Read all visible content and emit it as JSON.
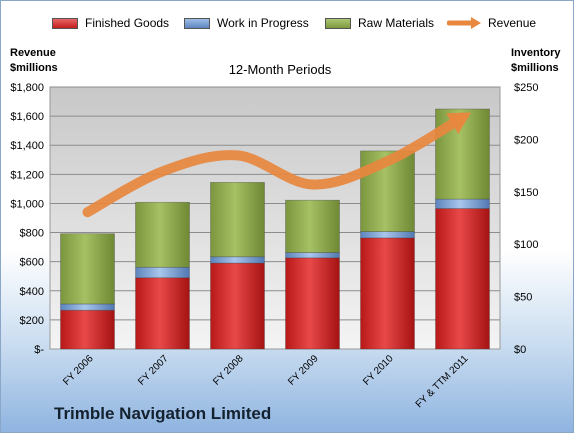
{
  "chart_data": {
    "type": "bar",
    "subtitle": "12-Month Periods",
    "footer_title": "Trimble Navigation Limited",
    "categories": [
      "FY 2006",
      "FY 2007",
      "FY 2008",
      "FY 2009",
      "FY 2010",
      "FY & TTM 2011"
    ],
    "stacked": true,
    "series": [
      {
        "name": "Finished Goods",
        "axis": "right",
        "color": "#d42a2a",
        "values": [
          37,
          68,
          82,
          87,
          106,
          134
        ]
      },
      {
        "name": "Work in Progress",
        "axis": "right",
        "color": "#6e97cf",
        "values": [
          6,
          10,
          6,
          5,
          6,
          9
        ]
      },
      {
        "name": "Raw Materials",
        "axis": "right",
        "color": "#8eab4e",
        "values": [
          67,
          62,
          71,
          50,
          77,
          86
        ]
      },
      {
        "name": "Revenue",
        "axis": "left",
        "type": "line",
        "color": "#e8873e",
        "values": [
          940,
          1220,
          1330,
          1130,
          1290,
          1590
        ]
      }
    ],
    "left_axis": {
      "title_line1": "Revenue",
      "title_line2": "$millions",
      "ylim": [
        0,
        1800
      ],
      "tick_labels": [
        "$-",
        "$200",
        "$400",
        "$600",
        "$800",
        "$1,000",
        "$1,200",
        "$1,400",
        "$1,600",
        "$1,800"
      ]
    },
    "right_axis": {
      "title_line1": "Inventory",
      "title_line2": "$millions",
      "ylim": [
        0,
        250
      ],
      "tick_labels": [
        "$0",
        "$50",
        "$100",
        "$150",
        "$200",
        "$250"
      ]
    },
    "grid": true,
    "legend_position": "top"
  }
}
